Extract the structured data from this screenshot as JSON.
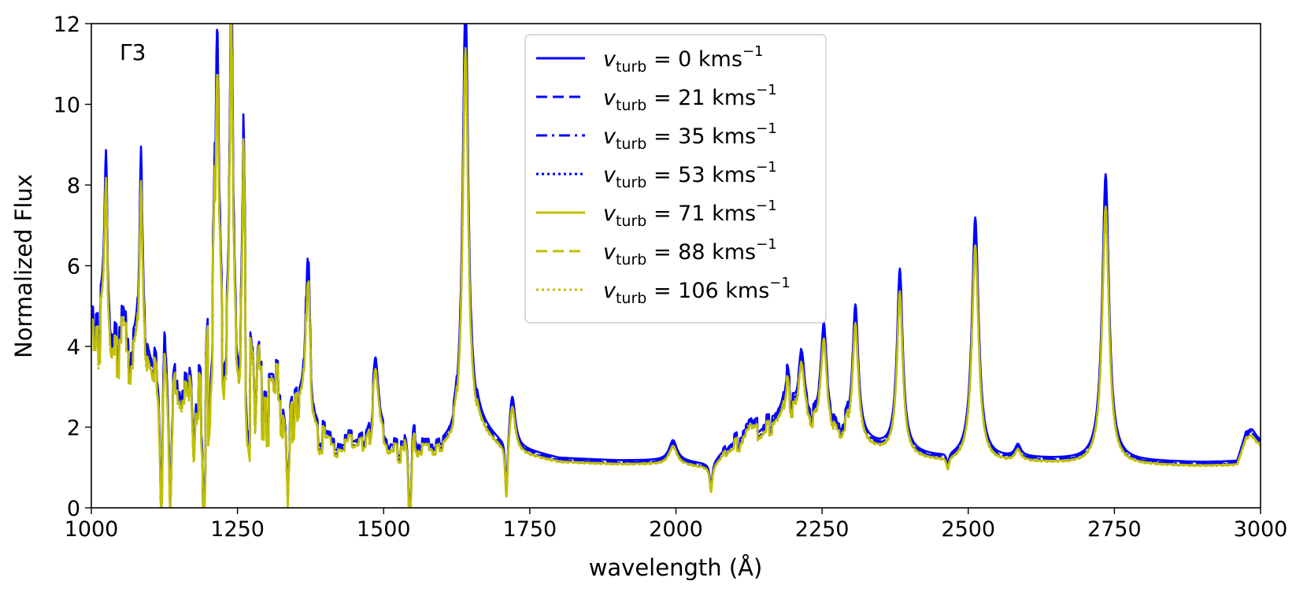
{
  "chart_data": {
    "type": "line",
    "panel_label": "Γ3",
    "xlabel": "wavelength (Å)",
    "ylabel": "Normalized Flux",
    "xlim": [
      1000,
      3000
    ],
    "ylim": [
      0,
      12
    ],
    "xticks": [
      1000,
      1250,
      1500,
      1750,
      2000,
      2250,
      2500,
      2750,
      3000
    ],
    "yticks": [
      0,
      2,
      4,
      6,
      8,
      10,
      12
    ],
    "grid": false,
    "legend_position": "top-center",
    "legend_prefix": "v",
    "legend_subscript": "turb",
    "legend_unit": "kms",
    "legend_exponent": "−1",
    "continuum": [
      [
        1000,
        4.2
      ],
      [
        1020,
        4.0
      ],
      [
        1050,
        3.9
      ],
      [
        1080,
        3.6
      ],
      [
        1110,
        3.2
      ],
      [
        1150,
        2.9
      ],
      [
        1200,
        2.6
      ],
      [
        1250,
        2.4
      ],
      [
        1300,
        2.1
      ],
      [
        1350,
        1.9
      ],
      [
        1400,
        1.6
      ],
      [
        1450,
        1.45
      ],
      [
        1500,
        1.5
      ],
      [
        1550,
        1.4
      ],
      [
        1600,
        1.4
      ],
      [
        1630,
        1.45
      ],
      [
        1660,
        1.9
      ],
      [
        1700,
        1.45
      ],
      [
        1750,
        1.3
      ],
      [
        1800,
        1.15
      ],
      [
        1900,
        1.1
      ],
      [
        2000,
        1.1
      ],
      [
        2060,
        1.0
      ],
      [
        2100,
        1.6
      ],
      [
        2150,
        2.0
      ],
      [
        2200,
        2.0
      ],
      [
        2250,
        1.9
      ],
      [
        2300,
        1.6
      ],
      [
        2350,
        1.4
      ],
      [
        2400,
        1.25
      ],
      [
        2450,
        1.15
      ],
      [
        2500,
        1.1
      ],
      [
        2600,
        1.15
      ],
      [
        2700,
        1.1
      ],
      [
        2800,
        1.08
      ],
      [
        2900,
        1.06
      ],
      [
        2960,
        1.08
      ],
      [
        2975,
        1.7
      ],
      [
        3000,
        1.55
      ]
    ],
    "lines": [
      {
        "center": 1025,
        "width": 3,
        "amp": 4.0
      },
      {
        "center": 1085,
        "width": 3,
        "amp": 5.5
      },
      {
        "center": 1125,
        "width": 3,
        "amp": 2.5
      },
      {
        "center": 1215,
        "width": 4,
        "amp": 9.0
      },
      {
        "center": 1240,
        "width": 3,
        "amp": 10.0
      },
      {
        "center": 1260,
        "width": 3,
        "amp": 5.0
      },
      {
        "center": 1370,
        "width": 4,
        "amp": 4.5
      },
      {
        "center": 1486,
        "width": 6,
        "amp": 1.8
      },
      {
        "center": 1550,
        "width": 6,
        "amp": 1.0
      },
      {
        "center": 1640,
        "width": 6,
        "amp": 11.0
      },
      {
        "center": 1720,
        "width": 6,
        "amp": 1.3
      },
      {
        "center": 1995,
        "width": 8,
        "amp": 0.5
      },
      {
        "center": 2190,
        "width": 6,
        "amp": 1.1
      },
      {
        "center": 2215,
        "width": 6,
        "amp": 1.5
      },
      {
        "center": 2253,
        "width": 6,
        "amp": 2.4
      },
      {
        "center": 2307,
        "width": 6,
        "amp": 3.3
      },
      {
        "center": 2383,
        "width": 6,
        "amp": 4.5
      },
      {
        "center": 2512,
        "width": 7,
        "amp": 6.0
      },
      {
        "center": 2585,
        "width": 6,
        "amp": 0.3
      },
      {
        "center": 2735,
        "width": 7,
        "amp": 7.1
      },
      {
        "center": 2985,
        "width": 8,
        "amp": 0.2
      }
    ],
    "absorptions": [
      {
        "center": 1120,
        "depth": 4.0
      },
      {
        "center": 1135,
        "depth": 3.0
      },
      {
        "center": 1175,
        "depth": 2.0
      },
      {
        "center": 1193,
        "depth": 2.5
      },
      {
        "center": 1280,
        "depth": 2.0
      },
      {
        "center": 1335,
        "depth": 2.0
      },
      {
        "center": 1545,
        "depth": 3.5
      },
      {
        "center": 1710,
        "depth": 1.5
      },
      {
        "center": 2060,
        "depth": 0.6
      },
      {
        "center": 2465,
        "depth": 0.3
      }
    ],
    "series": [
      {
        "name": "v_turb = 0 km s^-1",
        "value": "0",
        "color": "#0000ff",
        "dash": "solid",
        "peak_scale": 1.0,
        "cont_scale": 1.06,
        "noise_scale": 0.95
      },
      {
        "name": "v_turb = 21 km s^-1",
        "value": "21",
        "color": "#0000ff",
        "dash": "dashed",
        "peak_scale": 0.95,
        "cont_scale": 1.03,
        "noise_scale": 0.95
      },
      {
        "name": "v_turb = 35 km s^-1",
        "value": "35",
        "color": "#0000ff",
        "dash": "dashdot",
        "peak_scale": 0.93,
        "cont_scale": 1.01,
        "noise_scale": 0.95
      },
      {
        "name": "v_turb = 53 km s^-1",
        "value": "53",
        "color": "#0000ff",
        "dash": "dotted",
        "peak_scale": 0.92,
        "cont_scale": 1.0,
        "noise_scale": 0.95
      },
      {
        "name": "v_turb = 71 km s^-1",
        "value": "71",
        "color": "#bfbf00",
        "dash": "solid",
        "peak_scale": 0.9,
        "cont_scale": 0.98,
        "noise_scale": 1.0
      },
      {
        "name": "v_turb = 88 km s^-1",
        "value": "88",
        "color": "#bfbf00",
        "dash": "dashed",
        "peak_scale": 0.88,
        "cont_scale": 0.97,
        "noise_scale": 1.0
      },
      {
        "name": "v_turb = 106 km s^-1",
        "value": "106",
        "color": "#bfbf00",
        "dash": "dotted",
        "peak_scale": 0.87,
        "cont_scale": 0.96,
        "noise_scale": 1.0
      }
    ]
  }
}
